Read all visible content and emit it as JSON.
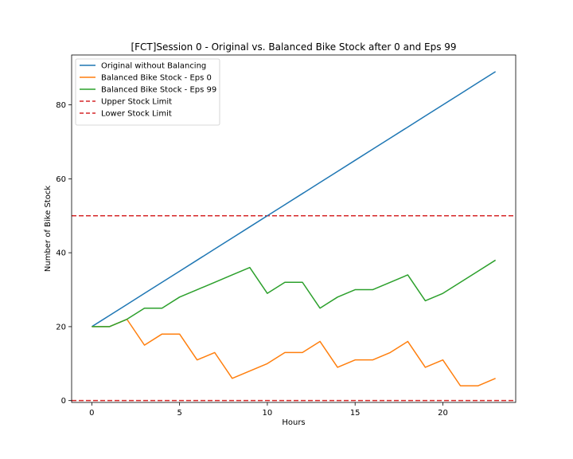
{
  "chart_data": {
    "type": "line",
    "title": "[FCT]Session 0 - Original vs. Balanced Bike Stock after 0 and Eps 99",
    "xlabel": "Hours",
    "ylabel": "Number of Bike Stock",
    "xlim": [
      -1.15,
      24.15
    ],
    "ylim": [
      -0.5,
      93.5
    ],
    "xticks": [
      0,
      5,
      10,
      15,
      20
    ],
    "yticks": [
      0,
      20,
      40,
      60,
      80
    ],
    "grid": false,
    "legend_position": "upper-left",
    "x": [
      0,
      1,
      2,
      3,
      4,
      5,
      6,
      7,
      8,
      9,
      10,
      11,
      12,
      13,
      14,
      15,
      16,
      17,
      18,
      19,
      20,
      21,
      22,
      23
    ],
    "series": [
      {
        "name": "Original without Balancing",
        "color": "#1f77b4",
        "style": "solid",
        "values": [
          20,
          23,
          26,
          29,
          32,
          35,
          38,
          41,
          44,
          47,
          50,
          53,
          56,
          59,
          62,
          65,
          68,
          71,
          74,
          77,
          80,
          83,
          86,
          89
        ]
      },
      {
        "name": "Balanced Bike Stock - Eps 0",
        "color": "#ff7f0e",
        "style": "solid",
        "values": [
          20,
          20,
          22,
          15,
          18,
          18,
          11,
          13,
          6,
          8,
          10,
          13,
          13,
          16,
          9,
          11,
          11,
          13,
          16,
          9,
          11,
          4,
          4,
          6
        ]
      },
      {
        "name": "Balanced Bike Stock - Eps 99",
        "color": "#2ca02c",
        "style": "solid",
        "values": [
          20,
          20,
          22,
          25,
          25,
          28,
          30,
          32,
          34,
          36,
          29,
          32,
          32,
          25,
          28,
          30,
          30,
          32,
          34,
          27,
          29,
          32,
          35,
          38
        ]
      }
    ],
    "reference_lines": [
      {
        "name": "Upper Stock Limit",
        "color": "#d62728",
        "style": "dashed",
        "y": 50
      },
      {
        "name": "Lower Stock Limit",
        "color": "#d62728",
        "style": "dashed",
        "y": 0
      }
    ]
  }
}
